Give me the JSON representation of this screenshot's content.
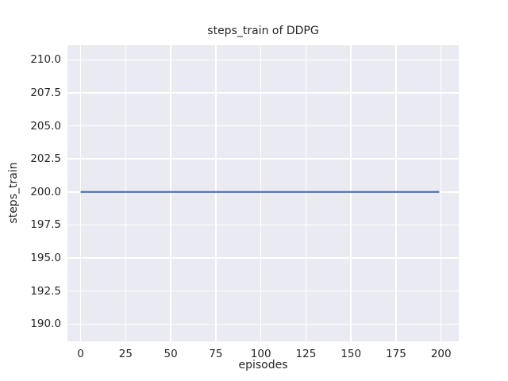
{
  "figure": {
    "background": "#ffffff"
  },
  "chart_data": {
    "type": "line",
    "title": "steps_train of DDPG",
    "xlabel": "episodes",
    "ylabel": "steps_train",
    "xlim": [
      -7.3,
      209.8
    ],
    "ylim": [
      188.7,
      211.1
    ],
    "grid": true,
    "legend": "none",
    "xticks": {
      "values": [
        0,
        25,
        50,
        75,
        100,
        125,
        150,
        175,
        200
      ],
      "labels": [
        "0",
        "25",
        "50",
        "75",
        "100",
        "125",
        "150",
        "175",
        "200"
      ]
    },
    "yticks": {
      "values": [
        190.0,
        192.5,
        195.0,
        197.5,
        200.0,
        202.5,
        205.0,
        207.5,
        210.0
      ],
      "labels": [
        "190.0",
        "192.5",
        "195.0",
        "197.5",
        "200.0",
        "202.5",
        "205.0",
        "207.5",
        "210.0"
      ]
    },
    "style": {
      "plot_background": "#EAEAF2",
      "grid_color": "#FFFFFF",
      "text_color": "#262626",
      "line_width": 2.2
    },
    "series": [
      {
        "name": "steps_train",
        "color": "#4C72B0",
        "constant_value": 200,
        "x": [
          0,
          199
        ],
        "y": [
          200,
          200
        ]
      }
    ]
  }
}
